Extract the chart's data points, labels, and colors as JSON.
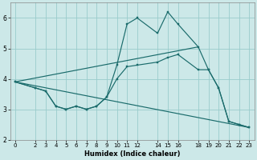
{
  "xlabel": "Humidex (Indice chaleur)",
  "bg_color": "#cce8e8",
  "line_color": "#1a6b6b",
  "grid_color": "#99cccc",
  "xlim": [
    -0.5,
    23.5
  ],
  "ylim": [
    2.0,
    6.5
  ],
  "xticks": [
    0,
    2,
    3,
    4,
    5,
    6,
    7,
    8,
    9,
    10,
    11,
    12,
    14,
    15,
    16,
    18,
    19,
    20,
    21,
    22,
    23
  ],
  "yticks": [
    2,
    3,
    4,
    5,
    6
  ],
  "series_main": {
    "x": [
      0,
      2,
      3,
      4,
      5,
      6,
      7,
      8,
      9,
      10,
      11,
      12,
      14,
      15,
      16,
      18,
      19,
      20,
      21,
      22,
      23
    ],
    "y": [
      3.9,
      3.7,
      3.6,
      3.1,
      3.0,
      3.1,
      3.0,
      3.1,
      3.4,
      4.45,
      5.8,
      6.0,
      5.5,
      6.2,
      5.8,
      5.05,
      4.3,
      3.7,
      2.6,
      2.5,
      2.4
    ]
  },
  "series_mid": {
    "x": [
      0,
      2,
      3,
      4,
      5,
      6,
      7,
      8,
      9,
      10,
      11,
      12,
      14,
      15,
      16,
      18,
      19,
      20,
      21,
      22,
      23
    ],
    "y": [
      3.9,
      3.7,
      3.6,
      3.1,
      3.0,
      3.1,
      3.0,
      3.1,
      3.4,
      4.0,
      4.4,
      4.45,
      4.55,
      4.7,
      4.8,
      4.3,
      4.3,
      3.7,
      2.6,
      2.5,
      2.4
    ]
  },
  "line_upper": {
    "x": [
      0,
      18
    ],
    "y": [
      3.9,
      5.05
    ]
  },
  "line_lower": {
    "x": [
      0,
      23
    ],
    "y": [
      3.9,
      2.4
    ]
  }
}
